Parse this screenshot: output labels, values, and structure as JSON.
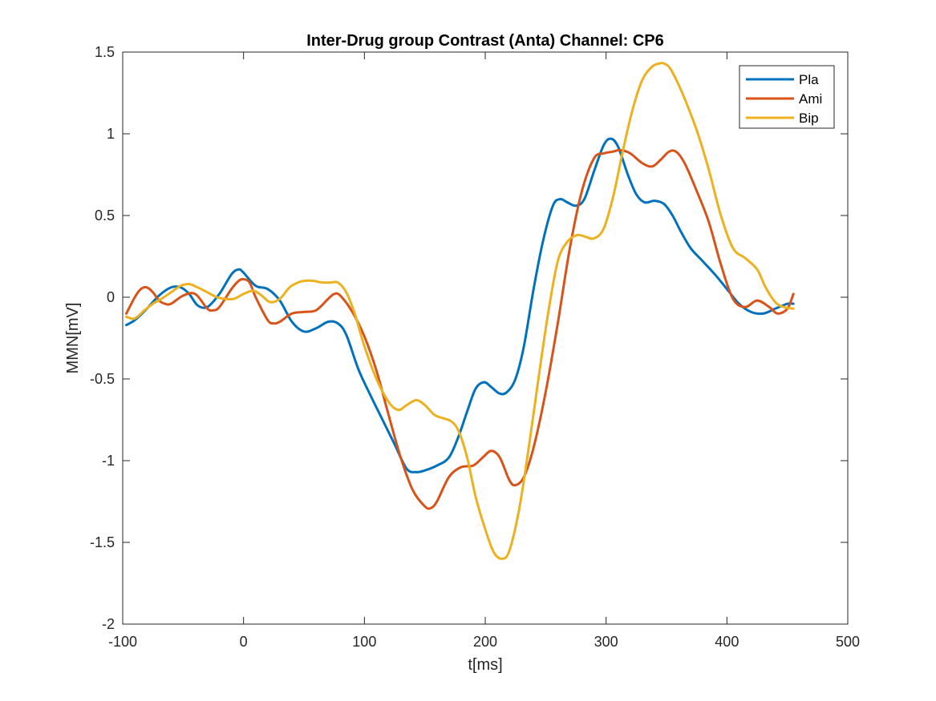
{
  "chart_data": {
    "type": "line",
    "title": "Inter-Drug group Contrast (Anta) Channel: CP6",
    "xlabel": "t[ms]",
    "ylabel": "MMN[mV]",
    "xlim": [
      -100,
      500
    ],
    "ylim": [
      -2,
      1.5
    ],
    "xticks": [
      -100,
      0,
      100,
      200,
      300,
      400,
      500
    ],
    "yticks": [
      -2,
      -1.5,
      -1,
      -0.5,
      0,
      0.5,
      1,
      1.5
    ],
    "xtick_labels": [
      "-100",
      "0",
      "100",
      "200",
      "300",
      "400",
      "500"
    ],
    "ytick_labels": [
      "-2",
      "-1.5",
      "-1",
      "-0.5",
      "0",
      "0.5",
      "1",
      "1.5"
    ],
    "grid": false,
    "legend_position": "top-right",
    "series": [
      {
        "name": "Pla",
        "color": "#0072BD",
        "x": [
          -97,
          -90,
          -80,
          -70,
          -60,
          -52,
          -45,
          -38,
          -30,
          -20,
          -10,
          -4,
          0,
          10,
          20,
          30,
          40,
          50,
          60,
          70,
          78,
          85,
          95,
          105,
          115,
          125,
          135,
          143,
          150,
          160,
          170,
          178,
          185,
          192,
          199,
          205,
          212,
          218,
          225,
          232,
          240,
          248,
          256,
          262,
          268,
          275,
          282,
          290,
          298,
          304,
          310,
          318,
          325,
          332,
          340,
          348,
          355,
          362,
          370,
          380,
          390,
          400,
          410,
          420,
          430,
          440,
          450,
          455
        ],
        "y": [
          -0.17,
          -0.14,
          -0.07,
          0.01,
          0.06,
          0.06,
          0.02,
          -0.05,
          -0.06,
          0.02,
          0.14,
          0.17,
          0.15,
          0.07,
          0.05,
          -0.02,
          -0.15,
          -0.21,
          -0.19,
          -0.15,
          -0.16,
          -0.23,
          -0.44,
          -0.6,
          -0.75,
          -0.9,
          -1.05,
          -1.07,
          -1.06,
          -1.03,
          -0.98,
          -0.85,
          -0.7,
          -0.56,
          -0.52,
          -0.55,
          -0.59,
          -0.58,
          -0.5,
          -0.3,
          0.05,
          0.35,
          0.56,
          0.6,
          0.58,
          0.56,
          0.6,
          0.77,
          0.93,
          0.97,
          0.92,
          0.75,
          0.63,
          0.58,
          0.59,
          0.57,
          0.5,
          0.4,
          0.3,
          0.22,
          0.14,
          0.05,
          -0.04,
          -0.09,
          -0.1,
          -0.07,
          -0.04,
          -0.04
        ]
      },
      {
        "name": "Ami",
        "color": "#D95319",
        "x": [
          -97,
          -90,
          -85,
          -80,
          -75,
          -70,
          -65,
          -60,
          -50,
          -40,
          -30,
          -25,
          -20,
          -10,
          -4,
          0,
          5,
          10,
          20,
          25,
          30,
          40,
          50,
          60,
          70,
          75,
          80,
          90,
          100,
          110,
          120,
          130,
          140,
          150,
          155,
          160,
          170,
          180,
          190,
          198,
          205,
          212,
          220,
          225,
          232,
          240,
          250,
          260,
          270,
          280,
          290,
          298,
          305,
          312,
          320,
          330,
          338,
          345,
          352,
          358,
          365,
          375,
          385,
          395,
          405,
          415,
          425,
          435,
          442,
          450,
          455
        ],
        "y": [
          -0.1,
          0.0,
          0.05,
          0.06,
          0.03,
          -0.02,
          -0.04,
          -0.04,
          0.01,
          0.02,
          -0.07,
          -0.08,
          -0.06,
          0.05,
          0.1,
          0.11,
          0.09,
          0.0,
          -0.14,
          -0.16,
          -0.15,
          -0.1,
          -0.09,
          -0.08,
          -0.01,
          0.02,
          0.01,
          -0.09,
          -0.24,
          -0.45,
          -0.72,
          -0.98,
          -1.18,
          -1.28,
          -1.29,
          -1.25,
          -1.1,
          -1.04,
          -1.03,
          -0.98,
          -0.94,
          -0.98,
          -1.12,
          -1.15,
          -1.1,
          -0.92,
          -0.58,
          -0.16,
          0.3,
          0.65,
          0.85,
          0.88,
          0.89,
          0.9,
          0.88,
          0.82,
          0.8,
          0.84,
          0.89,
          0.89,
          0.82,
          0.65,
          0.46,
          0.2,
          -0.01,
          -0.06,
          -0.02,
          -0.06,
          -0.1,
          -0.07,
          0.02
        ]
      },
      {
        "name": "Bip",
        "color": "#EDB120",
        "x": [
          -97,
          -90,
          -82,
          -75,
          -68,
          -60,
          -52,
          -45,
          -38,
          -30,
          -22,
          -15,
          -8,
          0,
          8,
          15,
          22,
          30,
          38,
          45,
          50,
          58,
          65,
          72,
          78,
          85,
          92,
          100,
          110,
          120,
          128,
          135,
          143,
          150,
          158,
          165,
          172,
          178,
          185,
          192,
          200,
          207,
          214,
          220,
          228,
          236,
          244,
          252,
          260,
          268,
          276,
          283,
          290,
          298,
          306,
          314,
          322,
          330,
          338,
          344,
          348,
          353,
          360,
          368,
          376,
          385,
          395,
          405,
          415,
          425,
          432,
          440,
          447,
          455
        ],
        "y": [
          -0.12,
          -0.13,
          -0.08,
          -0.04,
          -0.01,
          0.03,
          0.07,
          0.08,
          0.06,
          0.03,
          0.0,
          -0.01,
          -0.01,
          0.02,
          0.04,
          0.01,
          -0.03,
          -0.01,
          0.06,
          0.09,
          0.1,
          0.1,
          0.09,
          0.09,
          0.09,
          0.03,
          -0.1,
          -0.3,
          -0.5,
          -0.64,
          -0.69,
          -0.66,
          -0.63,
          -0.66,
          -0.72,
          -0.74,
          -0.76,
          -0.82,
          -0.98,
          -1.22,
          -1.42,
          -1.56,
          -1.6,
          -1.55,
          -1.3,
          -0.92,
          -0.5,
          -0.1,
          0.22,
          0.34,
          0.38,
          0.37,
          0.36,
          0.42,
          0.62,
          0.9,
          1.15,
          1.33,
          1.41,
          1.43,
          1.43,
          1.4,
          1.3,
          1.16,
          1.0,
          0.78,
          0.5,
          0.3,
          0.24,
          0.17,
          0.06,
          -0.03,
          -0.06,
          -0.07
        ]
      }
    ]
  }
}
